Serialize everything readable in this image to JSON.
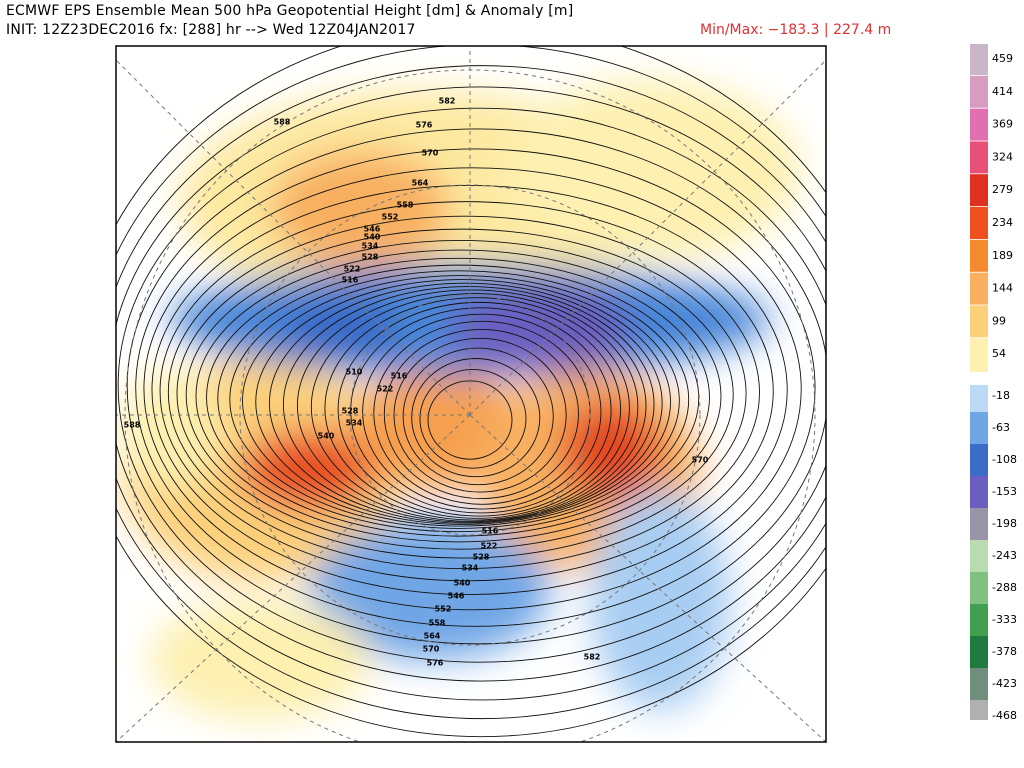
{
  "header": {
    "title": "ECMWF EPS Ensemble Mean 500 hPa Geopotential Height [dm] & Anomaly [m]",
    "init": "INIT: 12Z23DEC2016 fx: [288] hr --> Wed 12Z04JAN2017",
    "minmax": "Min/Max: −183.3 | 227.4 m"
  },
  "colorbar": {
    "labels": [
      "459",
      "414",
      "369",
      "324",
      "279",
      "234",
      "189",
      "144",
      "99",
      "54",
      "-18",
      "-63",
      "-108",
      "-153",
      "-198",
      "-243",
      "-288",
      "-333",
      "-378",
      "-423",
      "-468"
    ]
  },
  "map": {
    "contour_labels": [
      "582",
      "588",
      "576",
      "570",
      "564",
      "558",
      "552",
      "546",
      "540",
      "534",
      "528",
      "522",
      "516",
      "510",
      "516",
      "522",
      "528",
      "534",
      "540",
      "588",
      "570",
      "516",
      "522",
      "528",
      "534",
      "540",
      "546",
      "552",
      "558",
      "564",
      "570",
      "576",
      "582"
    ]
  }
}
